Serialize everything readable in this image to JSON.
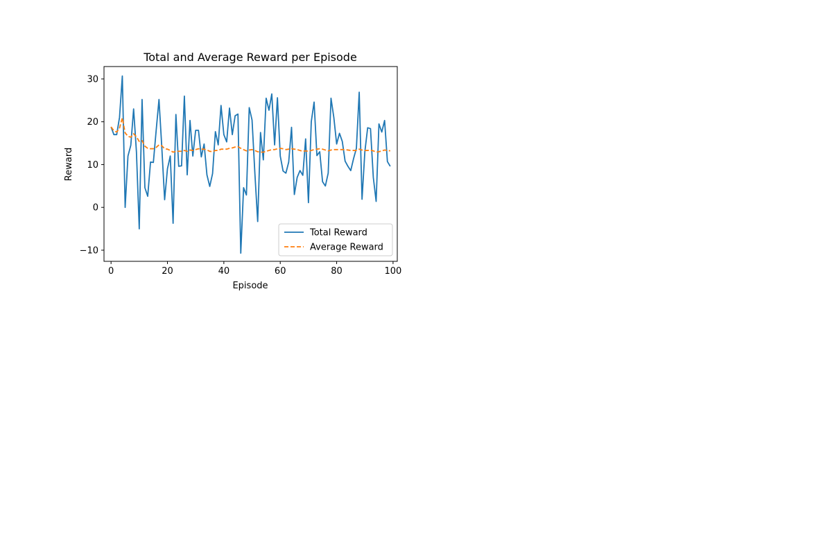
{
  "chart_data": {
    "type": "line",
    "title": "Total and Average Reward per Episode",
    "xlabel": "Episode",
    "ylabel": "Reward",
    "xlim": [
      -2.5,
      101.5
    ],
    "ylim": [
      -12.6,
      32.9
    ],
    "xticks": [
      0,
      20,
      40,
      60,
      80,
      100
    ],
    "yticks": [
      -10,
      0,
      10,
      20,
      30
    ],
    "grid": false,
    "legend_position": "lower-right",
    "series": [
      {
        "name": "Total Reward",
        "color": "#1f77b4",
        "style": "solid",
        "x": [
          0,
          1,
          2,
          3,
          4,
          5,
          6,
          7,
          8,
          9,
          10,
          11,
          12,
          13,
          14,
          15,
          16,
          17,
          18,
          19,
          20,
          21,
          22,
          23,
          24,
          25,
          26,
          27,
          28,
          29,
          30,
          31,
          32,
          33,
          34,
          35,
          36,
          37,
          38,
          39,
          40,
          41,
          42,
          43,
          44,
          45,
          46,
          47,
          48,
          49,
          50,
          51,
          52,
          53,
          54,
          55,
          56,
          57,
          58,
          59,
          60,
          61,
          62,
          63,
          64,
          65,
          66,
          67,
          68,
          69,
          70,
          71,
          72,
          73,
          74,
          75,
          76,
          77,
          78,
          79,
          80,
          81,
          82,
          83,
          84,
          85,
          86,
          87,
          88,
          89,
          90,
          91,
          92,
          93,
          94,
          95,
          96,
          97,
          98,
          99
        ],
        "values": [
          18.8,
          17.0,
          17.0,
          21.0,
          30.7,
          0.0,
          12.0,
          14.5,
          23.0,
          13.0,
          -5.0,
          25.2,
          4.6,
          2.6,
          10.6,
          10.5,
          18.0,
          25.2,
          14.0,
          1.8,
          9.0,
          12.0,
          -3.7,
          21.7,
          9.6,
          9.7,
          26.0,
          7.6,
          20.3,
          12.0,
          18.0,
          18.0,
          11.8,
          14.8,
          7.6,
          4.9,
          7.9,
          17.7,
          14.6,
          23.8,
          17.0,
          15.3,
          23.2,
          17.0,
          21.4,
          21.8,
          -10.7,
          4.6,
          2.9,
          23.3,
          20.4,
          8.0,
          -3.3,
          17.5,
          11.1,
          25.5,
          22.7,
          26.5,
          14.6,
          25.6,
          12.0,
          8.5,
          8.0,
          10.6,
          18.7,
          3.0,
          7.0,
          8.6,
          7.5,
          16.0,
          1.1,
          20.0,
          24.6,
          12.1,
          13.0,
          6.0,
          5.0,
          8.0,
          25.5,
          21.0,
          14.8,
          17.3,
          15.4,
          10.8,
          9.6,
          8.6,
          11.4,
          13.8,
          26.9,
          1.9,
          13.0,
          18.6,
          18.4,
          7.0,
          1.4,
          19.5,
          17.6,
          20.3,
          10.7,
          9.6
        ]
      },
      {
        "name": "Average Reward",
        "color": "#ff7f0e",
        "style": "dashed",
        "x": [
          0,
          1,
          2,
          3,
          4,
          5,
          6,
          7,
          8,
          9,
          10,
          11,
          12,
          13,
          14,
          15,
          16,
          17,
          18,
          19,
          20,
          21,
          22,
          23,
          24,
          25,
          26,
          27,
          28,
          29,
          30,
          31,
          32,
          33,
          34,
          35,
          36,
          37,
          38,
          39,
          40,
          41,
          42,
          43,
          44,
          45,
          46,
          47,
          48,
          49,
          50,
          51,
          52,
          53,
          54,
          55,
          56,
          57,
          58,
          59,
          60,
          61,
          62,
          63,
          64,
          65,
          66,
          67,
          68,
          69,
          70,
          71,
          72,
          73,
          74,
          75,
          76,
          77,
          78,
          79,
          80,
          81,
          82,
          83,
          84,
          85,
          86,
          87,
          88,
          89,
          90,
          91,
          92,
          93,
          94,
          95,
          96,
          97,
          98,
          99
        ],
        "values": [
          18.8,
          17.9,
          17.6,
          18.5,
          20.9,
          17.4,
          16.6,
          16.4,
          17.2,
          16.5,
          15.4,
          15.6,
          14.3,
          13.8,
          13.7,
          13.7,
          14.0,
          14.6,
          14.4,
          13.7,
          13.6,
          13.3,
          12.9,
          13.1,
          13.1,
          13.1,
          13.3,
          13.1,
          13.4,
          13.3,
          13.5,
          13.7,
          13.6,
          13.6,
          13.4,
          13.1,
          13.0,
          13.3,
          13.3,
          13.6,
          13.6,
          13.6,
          13.8,
          13.9,
          14.1,
          14.2,
          13.8,
          13.5,
          13.2,
          13.4,
          13.5,
          13.3,
          13.0,
          12.9,
          12.9,
          13.1,
          13.3,
          13.5,
          13.5,
          13.7,
          13.8,
          13.7,
          13.5,
          13.6,
          13.7,
          13.6,
          13.5,
          13.3,
          13.1,
          13.2,
          13.1,
          13.3,
          13.5,
          13.6,
          13.7,
          13.6,
          13.4,
          13.2,
          13.4,
          13.5,
          13.5,
          13.5,
          13.5,
          13.5,
          13.4,
          13.3,
          13.3,
          13.3,
          13.6,
          13.4,
          13.3,
          13.3,
          13.4,
          13.2,
          12.9,
          13.0,
          13.2,
          13.4,
          13.3,
          13.2
        ]
      }
    ]
  }
}
